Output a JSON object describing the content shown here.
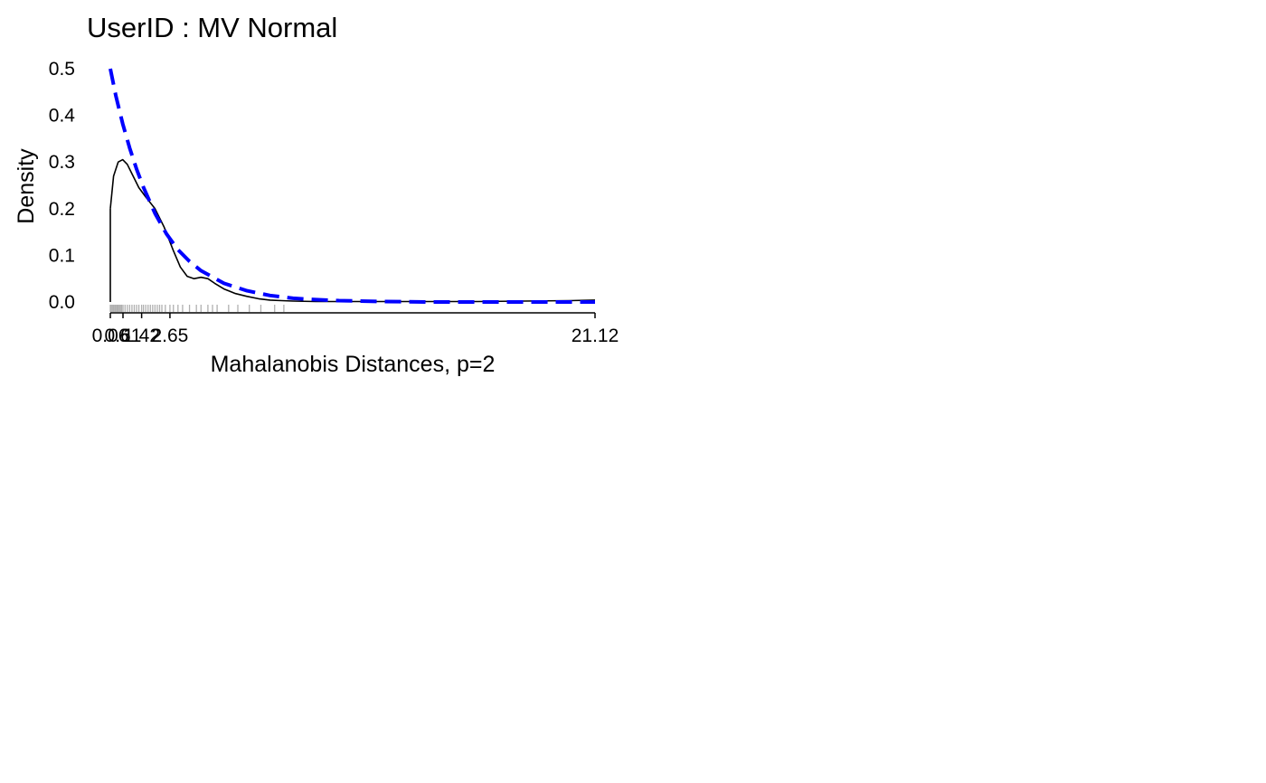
{
  "chart_data": {
    "type": "line",
    "title": "UserID : MV Normal",
    "xlabel": "Mahalanobis Distances, p=2",
    "ylabel": "Density",
    "xlim": [
      0.06,
      21.12
    ],
    "ylim": [
      0.0,
      0.5
    ],
    "x_ticks": [
      0.06,
      0.61,
      1.42,
      2.65,
      21.12
    ],
    "x_tick_labels": [
      "0.06",
      "0.61",
      "1.42",
      "2.65",
      "21.12"
    ],
    "y_ticks": [
      0.0,
      0.1,
      0.2,
      0.3,
      0.4,
      0.5
    ],
    "y_tick_labels": [
      "0.0",
      "0.1",
      "0.2",
      "0.3",
      "0.4",
      "0.5"
    ],
    "grid": false,
    "series": [
      {
        "style": "solid",
        "color": "#000000",
        "x": [
          0.06,
          0.2,
          0.4,
          0.6,
          0.8,
          1.0,
          1.3,
          1.6,
          2.0,
          2.4,
          2.8,
          3.1,
          3.4,
          3.7,
          4.0,
          4.3,
          4.6,
          5.0,
          5.5,
          6.0,
          6.5,
          7.0,
          7.5,
          8.0,
          9.0,
          10.0,
          12.0,
          14.0,
          16.0,
          18.0,
          20.0,
          21.12
        ],
        "y": [
          0.2,
          0.27,
          0.3,
          0.305,
          0.295,
          0.275,
          0.245,
          0.225,
          0.2,
          0.16,
          0.11,
          0.075,
          0.055,
          0.05,
          0.053,
          0.05,
          0.04,
          0.028,
          0.018,
          0.012,
          0.007,
          0.004,
          0.003,
          0.002,
          0.001,
          0.001,
          0.001,
          0.001,
          0.001,
          0.002,
          0.003,
          0.004
        ]
      },
      {
        "style": "dashed",
        "color": "#0000ff",
        "x": [
          0.06,
          0.3,
          0.6,
          0.9,
          1.2,
          1.5,
          2.0,
          2.5,
          3.0,
          3.5,
          4.0,
          5.0,
          6.0,
          7.0,
          8.0,
          9.0,
          10.0,
          12.0,
          14.0,
          16.0,
          18.0,
          20.0,
          21.12
        ],
        "y": [
          0.5,
          0.442,
          0.382,
          0.33,
          0.285,
          0.246,
          0.19,
          0.146,
          0.112,
          0.087,
          0.067,
          0.04,
          0.024,
          0.014,
          0.008,
          0.005,
          0.003,
          0.001,
          0.0,
          0.0,
          0.0,
          0.0,
          0.0
        ]
      }
    ],
    "rug": [
      0.06,
      0.1,
      0.15,
      0.2,
      0.25,
      0.3,
      0.35,
      0.4,
      0.45,
      0.5,
      0.55,
      0.61,
      0.7,
      0.8,
      0.9,
      1.0,
      1.1,
      1.2,
      1.3,
      1.42,
      1.5,
      1.6,
      1.7,
      1.8,
      1.9,
      2.0,
      2.1,
      2.2,
      2.3,
      2.45,
      2.65,
      2.8,
      3.0,
      3.2,
      3.5,
      3.8,
      4.0,
      4.3,
      4.5,
      4.7,
      5.2,
      5.6,
      6.1,
      6.6,
      7.2,
      7.6
    ]
  }
}
